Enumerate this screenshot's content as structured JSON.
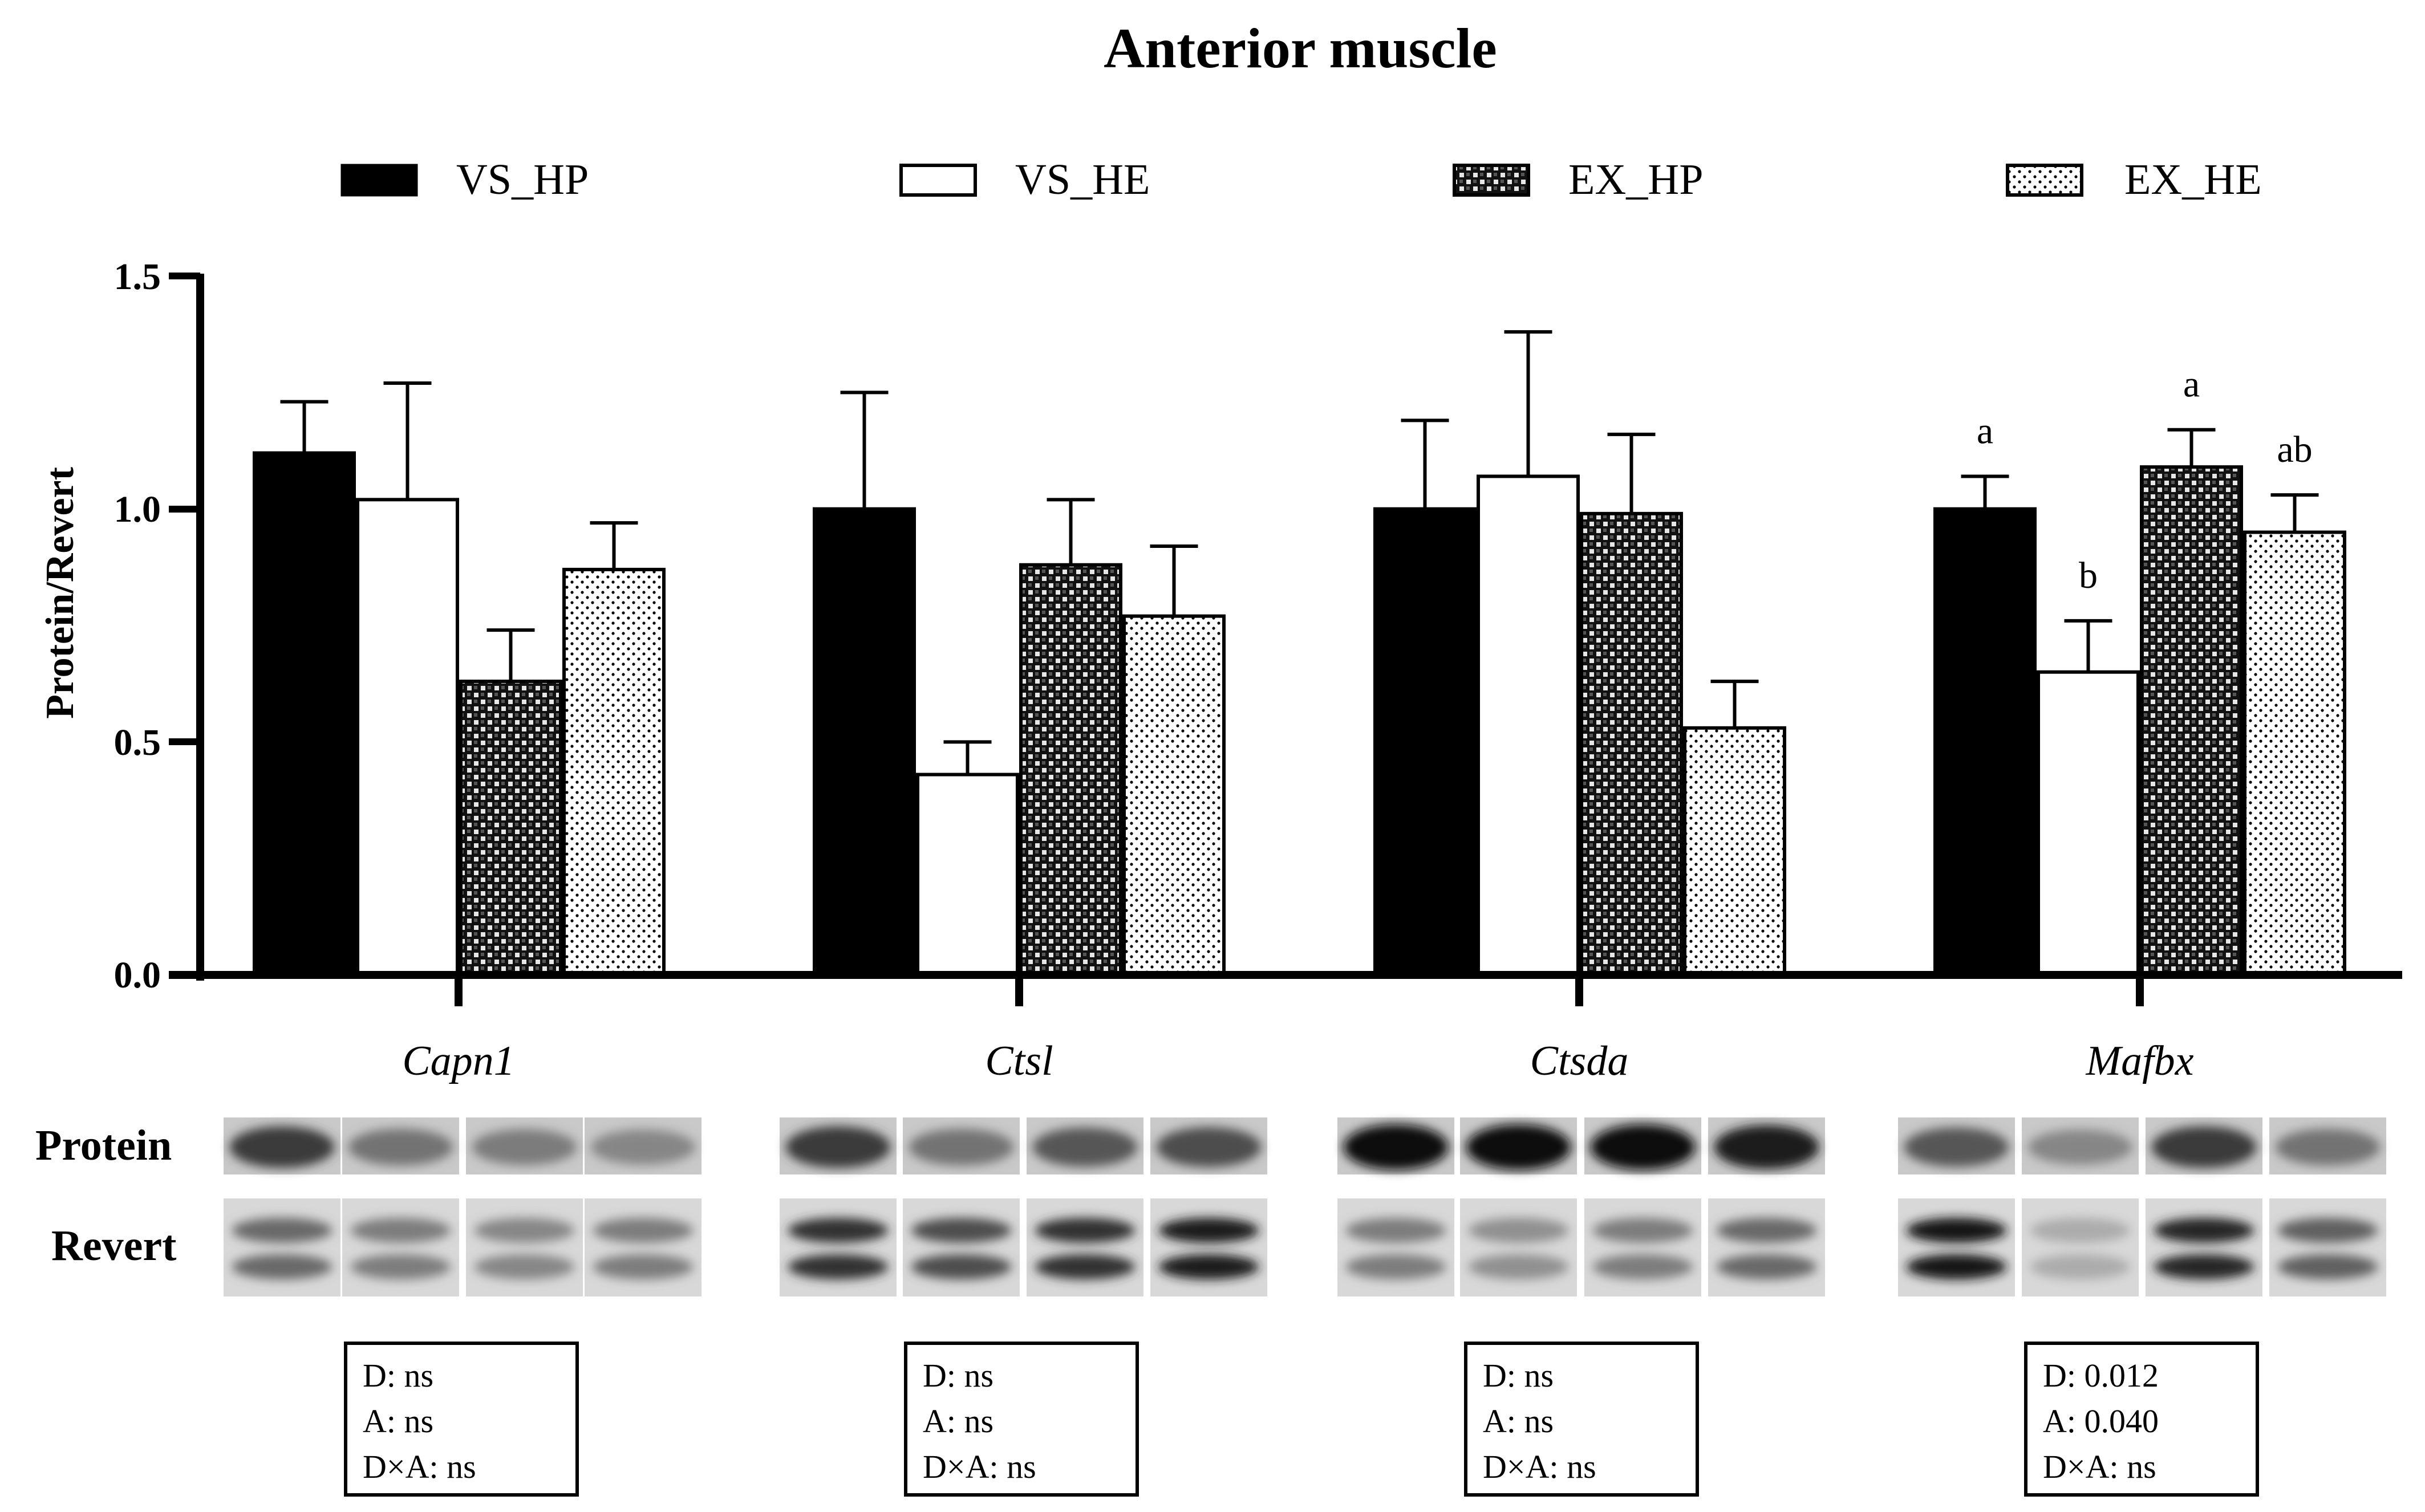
{
  "chart_data": {
    "type": "bar",
    "title": "Anterior muscle",
    "xlabel": "",
    "ylabel": "Protein/Revert",
    "ylim": [
      0,
      1.5
    ],
    "yticks": [
      "0.0",
      "0.5",
      "1.0",
      "1.5"
    ],
    "grid": false,
    "legend_position": "top",
    "categories": [
      "Capn1",
      "Ctsl",
      "Ctsda",
      "Mafbx"
    ],
    "series": [
      {
        "name": "VS_HP",
        "pattern": "solid",
        "values": [
          1.12,
          1.0,
          1.0,
          1.0
        ],
        "errors": [
          0.11,
          0.25,
          0.19,
          0.07
        ]
      },
      {
        "name": "VS_HE",
        "pattern": "white",
        "values": [
          1.02,
          0.43,
          1.07,
          0.65
        ],
        "errors": [
          0.25,
          0.07,
          0.31,
          0.11
        ]
      },
      {
        "name": "EX_HP",
        "pattern": "checker",
        "values": [
          0.63,
          0.88,
          0.99,
          1.09
        ],
        "errors": [
          0.11,
          0.14,
          0.17,
          0.08
        ]
      },
      {
        "name": "EX_HE",
        "pattern": "dots",
        "values": [
          0.87,
          0.77,
          0.53,
          0.95
        ],
        "errors": [
          0.1,
          0.15,
          0.1,
          0.08
        ]
      }
    ],
    "annotations": [
      {
        "category": "Mafbx",
        "series": "VS_HP",
        "text": "a"
      },
      {
        "category": "Mafbx",
        "series": "VS_HE",
        "text": "b"
      },
      {
        "category": "Mafbx",
        "series": "EX_HP",
        "text": "a"
      },
      {
        "category": "Mafbx",
        "series": "EX_HE",
        "text": "ab"
      }
    ]
  },
  "blot_labels": {
    "protein": "Protein",
    "revert": "Revert"
  },
  "stats": [
    {
      "category": "Capn1",
      "lines": [
        "D: ns",
        "A: ns",
        "D×A: ns"
      ]
    },
    {
      "category": "Ctsl",
      "lines": [
        "D: ns",
        "A: ns",
        "D×A: ns"
      ]
    },
    {
      "category": "Ctsda",
      "lines": [
        "D: ns",
        "A: ns",
        "D×A: ns"
      ]
    },
    {
      "category": "Mafbx",
      "lines": [
        "D: 0.012",
        "A: 0.040",
        "D×A: ns"
      ]
    }
  ]
}
